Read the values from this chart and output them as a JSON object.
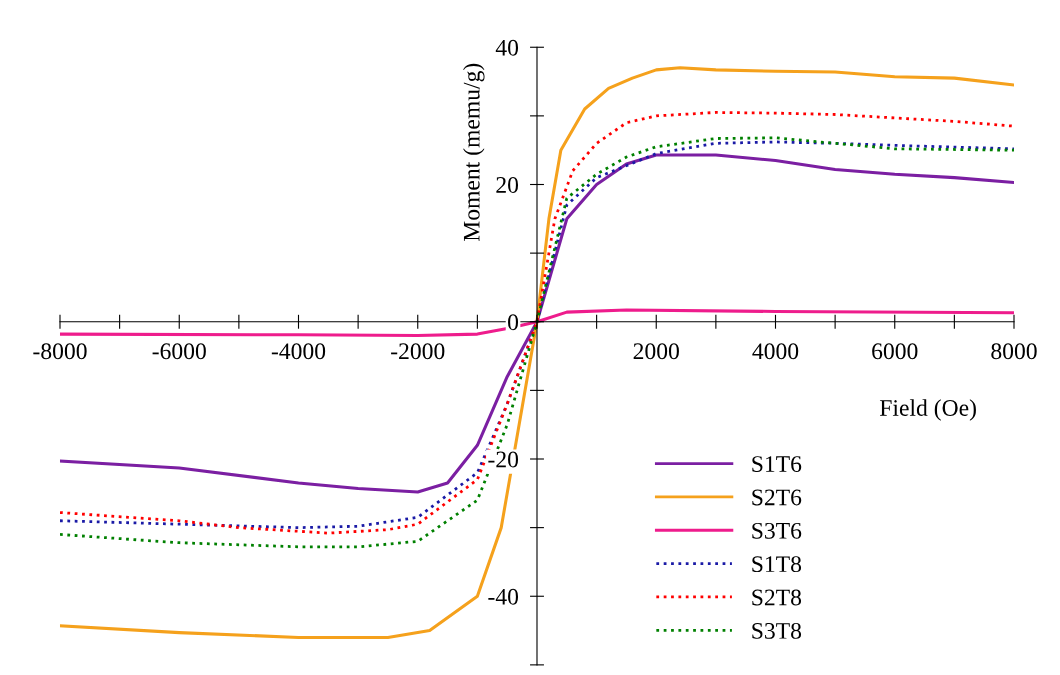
{
  "chart_data": {
    "type": "line",
    "xlabel": "Field (Oe)",
    "ylabel": "Moment (memu/g)",
    "xlim": [
      -8000,
      8000
    ],
    "ylim": [
      -50,
      40
    ],
    "xticks": [
      -8000,
      {
        "value": -7000,
        "label": null
      },
      -6000,
      {
        "value": -5000,
        "label": null
      },
      -4000,
      {
        "value": -3000,
        "label": null
      },
      -2000,
      {
        "value": -1000,
        "label": null
      },
      {
        "value": 0,
        "label": null
      },
      {
        "value": 1000,
        "label": null
      },
      2000,
      {
        "value": 3000,
        "label": null
      },
      4000,
      {
        "value": 5000,
        "label": null
      },
      6000,
      {
        "value": 7000,
        "label": null
      },
      8000
    ],
    "yticks": [
      {
        "value": -50,
        "label": null
      },
      -40,
      {
        "value": -30,
        "label": null
      },
      -20,
      {
        "value": -10,
        "label": null
      },
      0,
      {
        "value": 10,
        "label": null
      },
      20,
      {
        "value": 30,
        "label": null
      },
      40
    ],
    "grid": false,
    "legend": "bottom right",
    "marker": "none",
    "series": [
      {
        "name": "S1T6",
        "color": "#7b1fa2",
        "line_style": "solid",
        "x": [
          -8000,
          -6000,
          -4000,
          -3000,
          -2000,
          -1500,
          -1000,
          -500,
          0,
          500,
          1000,
          1500,
          2000,
          3000,
          4000,
          5000,
          6000,
          7000,
          8000
        ],
        "values": [
          -20.3,
          -21.3,
          -23.5,
          -24.3,
          -24.8,
          -23.5,
          -18,
          -8,
          0,
          15,
          20,
          23,
          24.3,
          24.3,
          23.5,
          22.2,
          21.5,
          21,
          20.3
        ]
      },
      {
        "name": "S2T6",
        "color": "#f5a11c",
        "line_style": "solid",
        "x": [
          -8000,
          -6000,
          -4000,
          -2500,
          -1800,
          -1000,
          -600,
          -300,
          0,
          200,
          400,
          800,
          1200,
          1600,
          2000,
          2400,
          3000,
          4000,
          5000,
          6000,
          7000,
          8000
        ],
        "values": [
          -44.3,
          -45.3,
          -46,
          -46,
          -45,
          -40,
          -30,
          -15,
          0,
          15,
          25,
          31,
          34,
          35.5,
          36.7,
          37,
          36.7,
          36.5,
          36.4,
          35.7,
          35.5,
          34.5
        ]
      },
      {
        "name": "S3T6",
        "color": "#ee1c8c",
        "line_style": "solid",
        "x": [
          -8000,
          -4000,
          -2000,
          -1000,
          -500,
          0,
          500,
          1500,
          4000,
          8000
        ],
        "values": [
          -1.8,
          -1.9,
          -2,
          -1.8,
          -1,
          0,
          1.4,
          1.7,
          1.5,
          1.3
        ]
      },
      {
        "name": "S1T8",
        "color": "#1a1aa6",
        "line_style": "dotted",
        "x": [
          -8000,
          -6000,
          -4000,
          -3000,
          -2000,
          -1000,
          -500,
          0,
          500,
          1000,
          2000,
          3000,
          4000,
          5000,
          6000,
          8000
        ],
        "values": [
          -29,
          -29.5,
          -30,
          -29.8,
          -28.5,
          -22,
          -12,
          0,
          17,
          21,
          24.5,
          26,
          26.2,
          26,
          25.7,
          25.2
        ]
      },
      {
        "name": "S2T8",
        "color": "#ff0000",
        "line_style": "dotted",
        "x": [
          -8000,
          -6000,
          -5000,
          -3500,
          -2500,
          -2000,
          -1000,
          -500,
          0,
          300,
          600,
          1000,
          1500,
          2000,
          3000,
          4000,
          5000,
          6000,
          7000,
          8000
        ],
        "values": [
          -27.8,
          -29,
          -30,
          -30.8,
          -30.3,
          -29.5,
          -23,
          -12,
          0,
          15,
          22,
          26,
          29,
          30,
          30.5,
          30.4,
          30.2,
          29.7,
          29.2,
          28.5
        ]
      },
      {
        "name": "S3T8",
        "color": "#008000",
        "line_style": "dotted",
        "x": [
          -8000,
          -6000,
          -4000,
          -3000,
          -2000,
          -1000,
          -500,
          0,
          500,
          1000,
          1500,
          2000,
          3000,
          4000,
          5000,
          6000,
          8000
        ],
        "values": [
          -31,
          -32.2,
          -32.8,
          -32.8,
          -32,
          -26,
          -15,
          0,
          18,
          21.5,
          24,
          25.5,
          26.7,
          26.8,
          26,
          25.2,
          25
        ]
      }
    ]
  }
}
